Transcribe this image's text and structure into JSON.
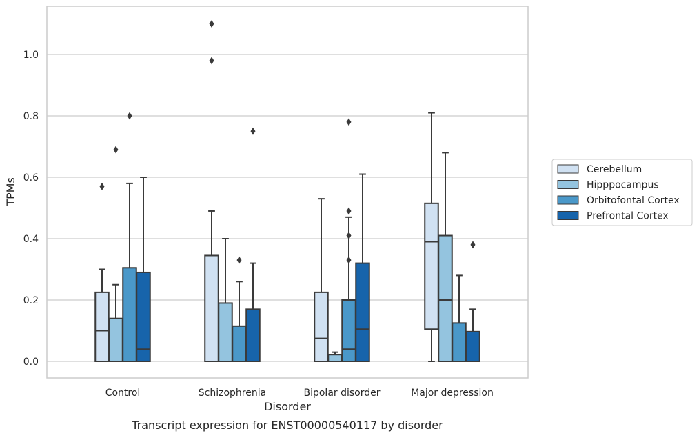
{
  "chart_data": {
    "type": "boxplot",
    "caption": "Transcript expression for ENST00000540117 by disorder",
    "xlabel": "Disorder",
    "ylabel": "TPMs",
    "ylim": [
      -0.05,
      1.16
    ],
    "yticks": [
      0.0,
      0.2,
      0.4,
      0.6,
      0.8,
      1.0
    ],
    "ytick_labels": [
      "0.0",
      "0.2",
      "0.4",
      "0.6",
      "0.8",
      "1.0"
    ],
    "grid": "horizontal",
    "legend_position": "right",
    "categories": [
      "Control",
      "Schizophrenia",
      "Bipolar disorder",
      "Major depression"
    ],
    "series": [
      {
        "name": "Cerebellum",
        "color": "#d0e1f2",
        "boxes": [
          {
            "whisker_low": 0.0,
            "q1": 0.0,
            "median": 0.1,
            "q3": 0.225,
            "whisker_high": 0.3,
            "outliers": [
              0.57
            ]
          },
          {
            "whisker_low": 0.0,
            "q1": 0.0,
            "median": 0.0,
            "q3": 0.345,
            "whisker_high": 0.49,
            "outliers": [
              0.98,
              1.1
            ]
          },
          {
            "whisker_low": 0.0,
            "q1": 0.0,
            "median": 0.075,
            "q3": 0.225,
            "whisker_high": 0.53,
            "outliers": []
          },
          {
            "whisker_low": 0.0,
            "q1": 0.105,
            "median": 0.39,
            "q3": 0.515,
            "whisker_high": 0.81,
            "outliers": []
          }
        ]
      },
      {
        "name": "Hipppocampus",
        "color": "#94c4df",
        "boxes": [
          {
            "whisker_low": 0.0,
            "q1": 0.0,
            "median": 0.0,
            "q3": 0.14,
            "whisker_high": 0.25,
            "outliers": [
              0.69
            ]
          },
          {
            "whisker_low": 0.0,
            "q1": 0.0,
            "median": 0.0,
            "q3": 0.19,
            "whisker_high": 0.4,
            "outliers": []
          },
          {
            "whisker_low": 0.0,
            "q1": 0.0,
            "median": 0.0,
            "q3": 0.022,
            "whisker_high": 0.03,
            "outliers": []
          },
          {
            "whisker_low": 0.0,
            "q1": 0.0,
            "median": 0.2,
            "q3": 0.41,
            "whisker_high": 0.68,
            "outliers": []
          }
        ]
      },
      {
        "name": "Orbitofontal Cortex",
        "color": "#4a98c9",
        "boxes": [
          {
            "whisker_low": 0.0,
            "q1": 0.0,
            "median": 0.0,
            "q3": 0.305,
            "whisker_high": 0.58,
            "outliers": [
              0.8
            ]
          },
          {
            "whisker_low": 0.0,
            "q1": 0.0,
            "median": 0.0,
            "q3": 0.115,
            "whisker_high": 0.26,
            "outliers": [
              0.33
            ]
          },
          {
            "whisker_low": 0.0,
            "q1": 0.0,
            "median": 0.04,
            "q3": 0.2,
            "whisker_high": 0.47,
            "outliers": [
              0.33,
              0.41,
              0.49,
              0.78
            ]
          },
          {
            "whisker_low": 0.0,
            "q1": 0.0,
            "median": 0.0,
            "q3": 0.125,
            "whisker_high": 0.28,
            "outliers": []
          }
        ]
      },
      {
        "name": "Prefrontal Cortex",
        "color": "#1764ab",
        "boxes": [
          {
            "whisker_low": 0.0,
            "q1": 0.0,
            "median": 0.04,
            "q3": 0.29,
            "whisker_high": 0.6,
            "outliers": []
          },
          {
            "whisker_low": 0.0,
            "q1": 0.0,
            "median": 0.0,
            "q3": 0.17,
            "whisker_high": 0.32,
            "outliers": [
              0.75
            ]
          },
          {
            "whisker_low": 0.0,
            "q1": 0.0,
            "median": 0.105,
            "q3": 0.32,
            "whisker_high": 0.61,
            "outliers": []
          },
          {
            "whisker_low": 0.0,
            "q1": 0.0,
            "median": 0.0,
            "q3": 0.097,
            "whisker_high": 0.17,
            "outliers": [
              0.38
            ]
          }
        ]
      }
    ]
  },
  "colors": {
    "line": "#3a3a3a",
    "grid": "#cccccc",
    "frame": "#cccccc"
  }
}
